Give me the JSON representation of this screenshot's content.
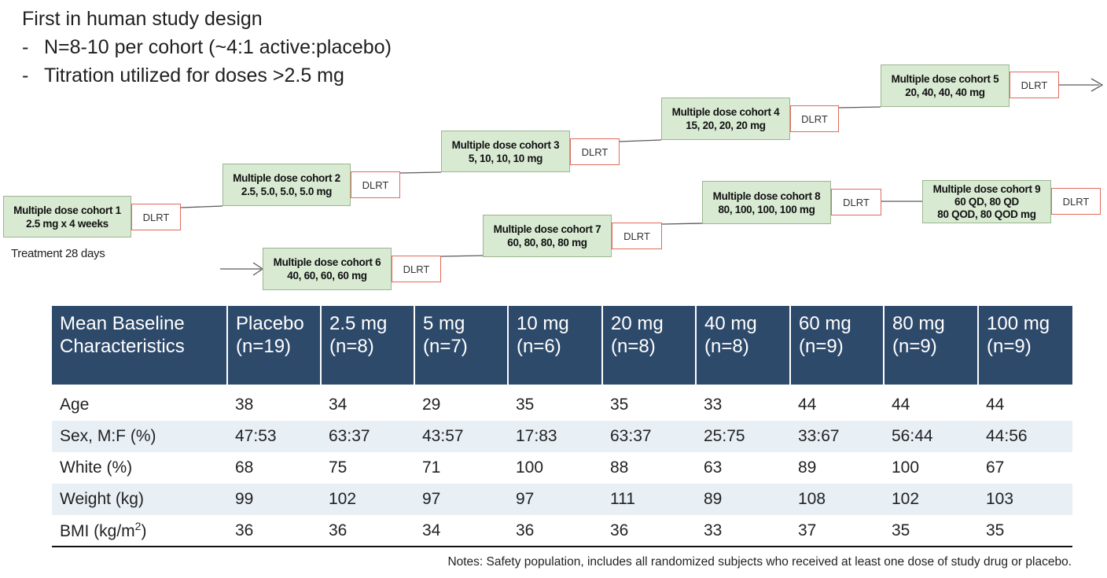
{
  "header": {
    "title": "First in human study design",
    "bullets": [
      "N=8-10 per cohort (~4:1 active:placebo)",
      "Titration utilized for doses >2.5 mg"
    ],
    "dash": "-"
  },
  "diagram": {
    "dlrt_label": "DLRT",
    "treatment_label": "Treatment 28 days",
    "cohorts": [
      {
        "name": "Multiple dose cohort 1",
        "dose": [
          "2.5 mg x 4 weeks"
        ]
      },
      {
        "name": "Multiple dose cohort 2",
        "dose": [
          "2.5, 5.0, 5.0, 5.0 mg"
        ]
      },
      {
        "name": "Multiple dose cohort 3",
        "dose": [
          "5, 10, 10, 10 mg"
        ]
      },
      {
        "name": "Multiple dose cohort 4",
        "dose": [
          "15, 20, 20, 20 mg"
        ]
      },
      {
        "name": "Multiple dose cohort 5",
        "dose": [
          "20, 40, 40, 40 mg"
        ]
      },
      {
        "name": "Multiple dose cohort 6",
        "dose": [
          "40, 60, 60, 60 mg"
        ]
      },
      {
        "name": "Multiple dose cohort 7",
        "dose": [
          "60, 80, 80, 80 mg"
        ]
      },
      {
        "name": "Multiple dose cohort 8",
        "dose": [
          "80, 100, 100, 100 mg"
        ]
      },
      {
        "name": "Multiple dose cohort 9",
        "dose": [
          "60 QD, 80 QD",
          "80 QOD, 80 QOD mg"
        ]
      }
    ]
  },
  "table": {
    "headers": [
      [
        "Mean Baseline",
        "Characteristics"
      ],
      [
        "Placebo",
        "(n=19)"
      ],
      [
        "2.5 mg",
        "(n=8)"
      ],
      [
        "5 mg",
        "(n=7)"
      ],
      [
        "10 mg",
        "(n=6)"
      ],
      [
        "20 mg",
        "(n=8)"
      ],
      [
        "40 mg",
        "(n=8)"
      ],
      [
        "60 mg",
        "(n=9)"
      ],
      [
        "80 mg",
        "(n=9)"
      ],
      [
        "100 mg",
        "(n=9)"
      ]
    ],
    "rows": [
      {
        "label": "Age",
        "values": [
          "38",
          "34",
          "29",
          "35",
          "35",
          "33",
          "44",
          "44",
          "44"
        ]
      },
      {
        "label": "Sex, M:F (%)",
        "values": [
          "47:53",
          "63:37",
          "43:57",
          "17:83",
          "63:37",
          "25:75",
          "33:67",
          "56:44",
          "44:56"
        ]
      },
      {
        "label": "White (%)",
        "values": [
          "68",
          "75",
          "71",
          "100",
          "88",
          "63",
          "89",
          "100",
          "67"
        ]
      },
      {
        "label": "Weight (kg)",
        "values": [
          "99",
          "102",
          "97",
          "97",
          "111",
          "89",
          "108",
          "102",
          "103"
        ]
      },
      {
        "label_main": "BMI (kg/m",
        "label_sup": "2",
        "label_end": ")",
        "values": [
          "36",
          "36",
          "34",
          "36",
          "36",
          "33",
          "37",
          "35",
          "35"
        ]
      }
    ]
  },
  "notes": "Notes:  Safety population, includes all randomized subjects who received at least one dose of study drug or placebo."
}
